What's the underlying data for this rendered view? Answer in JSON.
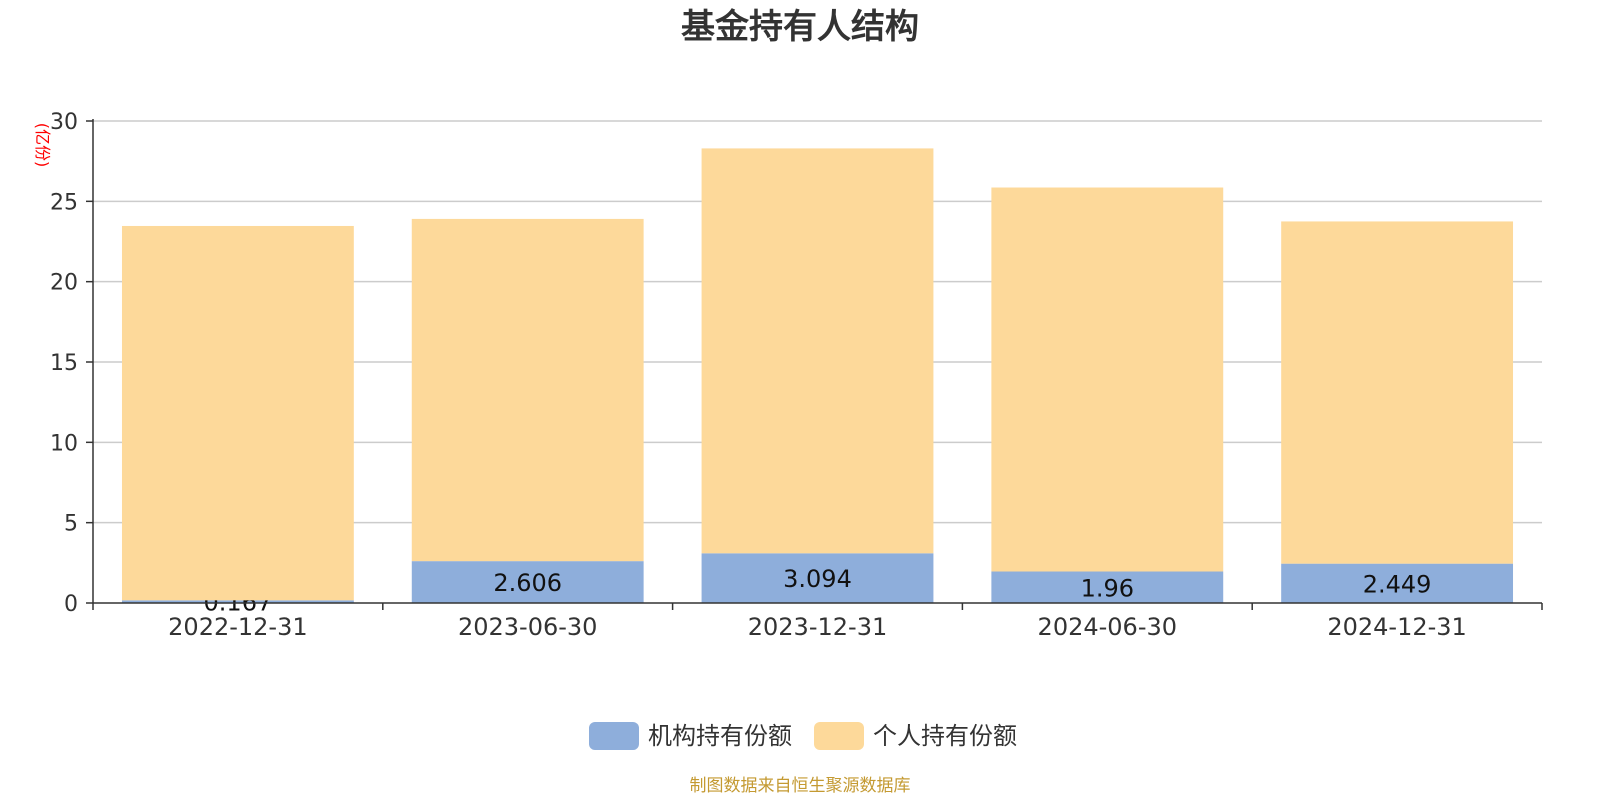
{
  "chart_data": {
    "type": "bar",
    "stacked": true,
    "title": "基金持有人结构",
    "unit_label": "(亿份)",
    "categories": [
      "2022-12-31",
      "2023-06-30",
      "2023-12-31",
      "2024-06-30",
      "2024-12-31"
    ],
    "series": [
      {
        "name": "机构持有份额",
        "color": "#8eaedb",
        "values": [
          0.167,
          2.606,
          3.094,
          1.96,
          2.449
        ],
        "labels": [
          "0.167",
          "2.606",
          "3.094",
          "1.96",
          "2.449"
        ]
      },
      {
        "name": "个人持有份额",
        "color": "#fdd99a",
        "values": [
          23.3,
          21.3,
          25.2,
          23.9,
          21.3
        ]
      }
    ],
    "ylim": [
      0,
      30
    ],
    "yticks": [
      "0",
      "5",
      "10",
      "15",
      "20",
      "25",
      "30"
    ],
    "grid": true,
    "legend_position": "bottom"
  },
  "source_note": "制图数据来自恒生聚源数据库"
}
